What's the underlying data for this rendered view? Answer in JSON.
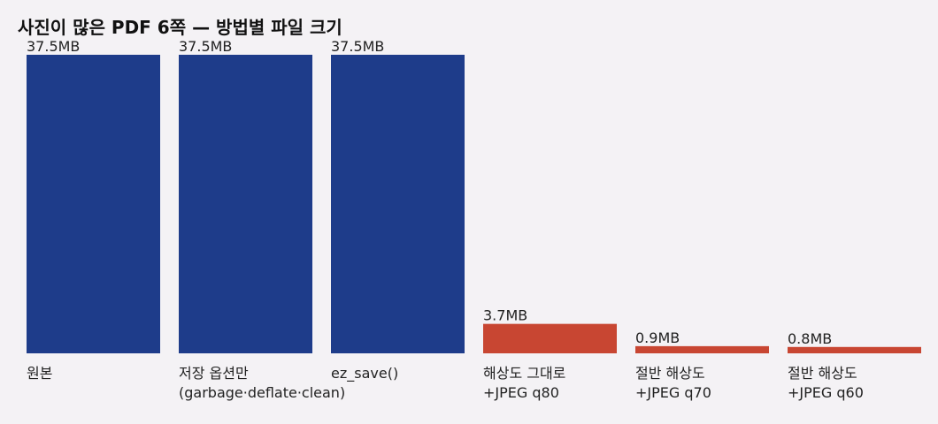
{
  "chart_data": {
    "type": "bar",
    "title": "사진이 많은 PDF 6쪽 — 방법별 파일 크기",
    "categories": [
      "원본",
      "저장 옵션만\n(garbage·deflate·clean)",
      "ez_save()",
      "해상도 그대로\n+JPEG q80",
      "절반 해상도\n+JPEG q70",
      "절반 해상도\n+JPEG q60"
    ],
    "values": [
      37.5,
      37.5,
      37.5,
      3.7,
      0.9,
      0.8
    ],
    "value_labels": [
      "37.5MB",
      "37.5MB",
      "37.5MB",
      "3.7MB",
      "0.9MB",
      "0.8MB"
    ],
    "colors": [
      "#1e3c8a",
      "#1e3c8a",
      "#1e3c8a",
      "#c84632",
      "#c84632",
      "#c84632"
    ],
    "ylim": [
      0,
      37.5
    ]
  }
}
